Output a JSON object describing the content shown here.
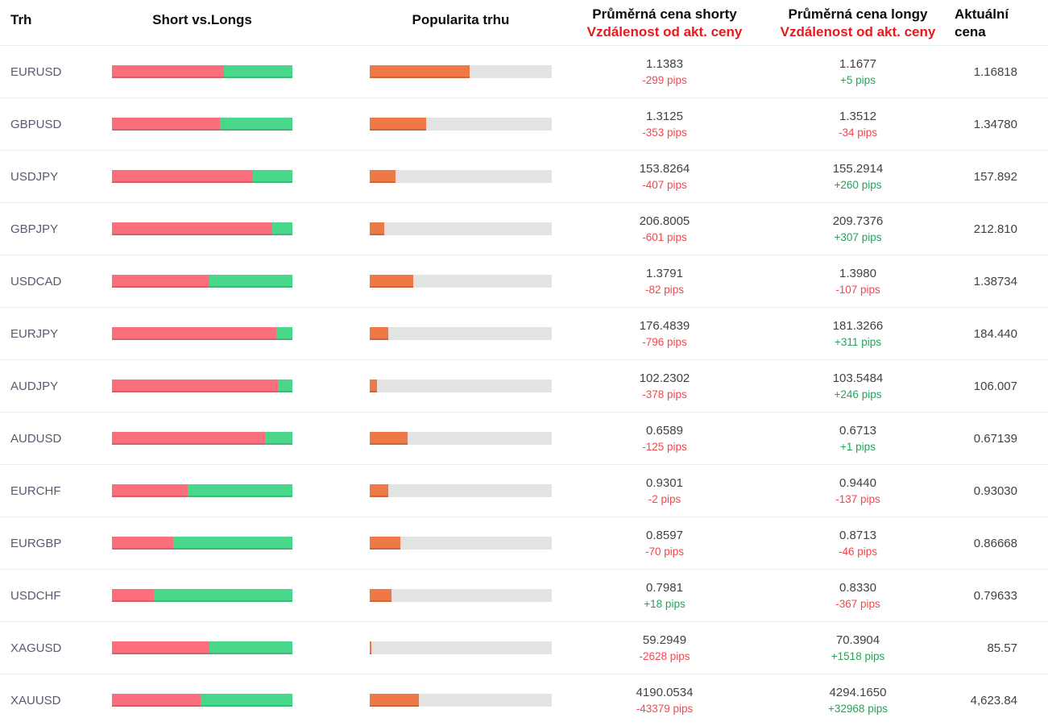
{
  "colors": {
    "short_bar": "#fb6e7c",
    "long_bar": "#49d78b",
    "popularity_bar": "#ee7946",
    "track": "#e3e3e3",
    "pips_up": "#22a45b",
    "pips_down": "#f4474e",
    "header_accent": "#e8191c"
  },
  "table": {
    "headers": {
      "market": "Trh",
      "short_vs_longs": "Short vs.Longs",
      "popularity": "Popularita trhu",
      "avg_short_line1": "Průměrná cena shorty",
      "avg_short_line2": "Vzdálenost od akt. ceny",
      "avg_long_line1": "Průměrná cena longy",
      "avg_long_line2": "Vzdálenost od akt. ceny",
      "current_line1": "Aktuální",
      "current_line2": "cena"
    },
    "rows": [
      {
        "market": "EURUSD",
        "short_pct": 62,
        "long_pct": 38,
        "popularity_pct": 55,
        "avg_short": "1.1383",
        "short_dist": "-299 pips",
        "short_dist_dir": "down",
        "avg_long": "1.1677",
        "long_dist": "+5 pips",
        "long_dist_dir": "up",
        "current": "1.16818"
      },
      {
        "market": "GBPUSD",
        "short_pct": 60,
        "long_pct": 40,
        "popularity_pct": 31,
        "avg_short": "1.3125",
        "short_dist": "-353 pips",
        "short_dist_dir": "down",
        "avg_long": "1.3512",
        "long_dist": "-34 pips",
        "long_dist_dir": "down",
        "current": "1.34780"
      },
      {
        "market": "USDJPY",
        "short_pct": 78,
        "long_pct": 22,
        "popularity_pct": 14,
        "avg_short": "153.8264",
        "short_dist": "-407 pips",
        "short_dist_dir": "down",
        "avg_long": "155.2914",
        "long_dist": "+260 pips",
        "long_dist_dir": "up",
        "current": "157.892"
      },
      {
        "market": "GBPJPY",
        "short_pct": 89,
        "long_pct": 11,
        "popularity_pct": 8,
        "avg_short": "206.8005",
        "short_dist": "-601 pips",
        "short_dist_dir": "down",
        "avg_long": "209.7376",
        "long_dist": "+307 pips",
        "long_dist_dir": "up",
        "current": "212.810"
      },
      {
        "market": "USDCAD",
        "short_pct": 54,
        "long_pct": 46,
        "popularity_pct": 24,
        "avg_short": "1.3791",
        "short_dist": "-82 pips",
        "short_dist_dir": "down",
        "avg_long": "1.3980",
        "long_dist": "-107 pips",
        "long_dist_dir": "down",
        "current": "1.38734"
      },
      {
        "market": "EURJPY",
        "short_pct": 91,
        "long_pct": 9,
        "popularity_pct": 10,
        "avg_short": "176.4839",
        "short_dist": "-796 pips",
        "short_dist_dir": "down",
        "avg_long": "181.3266",
        "long_dist": "+311 pips",
        "long_dist_dir": "up",
        "current": "184.440"
      },
      {
        "market": "AUDJPY",
        "short_pct": 92,
        "long_pct": 8,
        "popularity_pct": 4,
        "avg_short": "102.2302",
        "short_dist": "-378 pips",
        "short_dist_dir": "down",
        "avg_long": "103.5484",
        "long_dist": "+246 pips",
        "long_dist_dir": "up",
        "current": "106.007"
      },
      {
        "market": "AUDUSD",
        "short_pct": 85,
        "long_pct": 15,
        "popularity_pct": 21,
        "avg_short": "0.6589",
        "short_dist": "-125 pips",
        "short_dist_dir": "down",
        "avg_long": "0.6713",
        "long_dist": "+1 pips",
        "long_dist_dir": "up",
        "current": "0.67139"
      },
      {
        "market": "EURCHF",
        "short_pct": 42,
        "long_pct": 58,
        "popularity_pct": 10,
        "avg_short": "0.9301",
        "short_dist": "-2 pips",
        "short_dist_dir": "down",
        "avg_long": "0.9440",
        "long_dist": "-137 pips",
        "long_dist_dir": "down",
        "current": "0.93030"
      },
      {
        "market": "EURGBP",
        "short_pct": 34,
        "long_pct": 66,
        "popularity_pct": 17,
        "avg_short": "0.8597",
        "short_dist": "-70 pips",
        "short_dist_dir": "down",
        "avg_long": "0.8713",
        "long_dist": "-46 pips",
        "long_dist_dir": "down",
        "current": "0.86668"
      },
      {
        "market": "USDCHF",
        "short_pct": 23,
        "long_pct": 77,
        "popularity_pct": 12,
        "avg_short": "0.7981",
        "short_dist": "+18 pips",
        "short_dist_dir": "up",
        "avg_long": "0.8330",
        "long_dist": "-367 pips",
        "long_dist_dir": "down",
        "current": "0.79633"
      },
      {
        "market": "XAGUSD",
        "short_pct": 54,
        "long_pct": 46,
        "popularity_pct": 1,
        "avg_short": "59.2949",
        "short_dist": "-2628 pips",
        "short_dist_dir": "down",
        "avg_long": "70.3904",
        "long_dist": "+1518 pips",
        "long_dist_dir": "up",
        "current": "85.57"
      },
      {
        "market": "XAUUSD",
        "short_pct": 49,
        "long_pct": 51,
        "popularity_pct": 27,
        "avg_short": "4190.0534",
        "short_dist": "-43379 pips",
        "short_dist_dir": "down",
        "avg_long": "4294.1650",
        "long_dist": "+32968 pips",
        "long_dist_dir": "up",
        "current": "4,623.84"
      }
    ]
  }
}
